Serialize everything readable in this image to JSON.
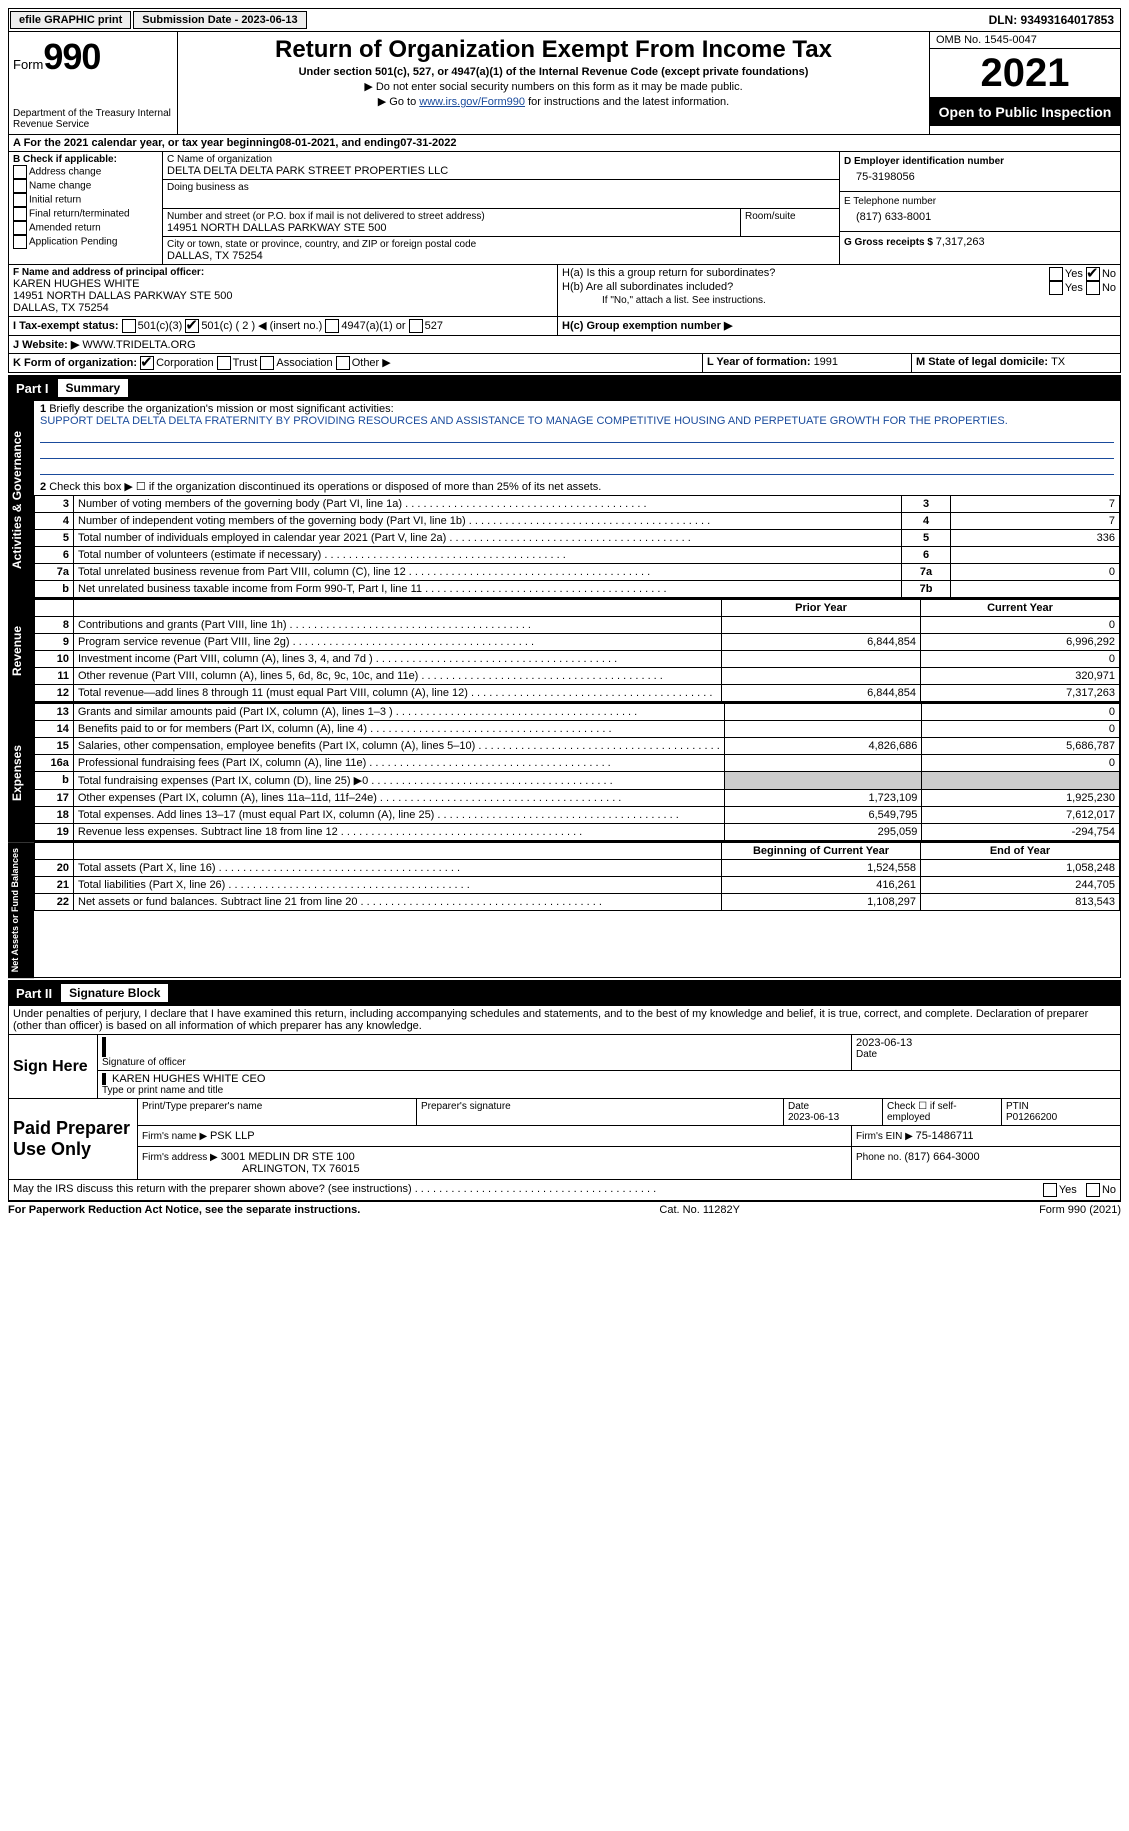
{
  "topbar": {
    "efile_btn": "efile GRAPHIC print",
    "sub_lbl": "Submission Date - 2023-06-13",
    "dln_lbl": "DLN: 93493164017853"
  },
  "header": {
    "form_label": "Form",
    "form_num": "990",
    "dept": "Department of the Treasury\nInternal Revenue Service",
    "title": "Return of Organization Exempt From Income Tax",
    "sub": "Under section 501(c), 527, or 4947(a)(1) of the Internal Revenue Code (except private foundations)",
    "note1": "▶ Do not enter social security numbers on this form as it may be made public.",
    "note2_a": "▶ Go to ",
    "note2_link": "www.irs.gov/Form990",
    "note2_b": " for instructions and the latest information.",
    "omb": "OMB No. 1545-0047",
    "year": "2021",
    "open": "Open to Public Inspection"
  },
  "periodA": {
    "a": "A For the 2021 calendar year, or tax year beginning ",
    "begin": "08-01-2021",
    "mid": " , and ending ",
    "end": "07-31-2022"
  },
  "boxB": {
    "title": "B Check if applicable:",
    "items": [
      "Address change",
      "Name change",
      "Initial return",
      "Final return/terminated",
      "Amended return",
      "Application Pending"
    ]
  },
  "boxC": {
    "name_lbl": "C Name of organization",
    "name": "DELTA DELTA DELTA PARK STREET PROPERTIES LLC",
    "dba_lbl": "Doing business as",
    "addr_lbl": "Number and street (or P.O. box if mail is not delivered to street address)",
    "addr": "14951 NORTH DALLAS PARKWAY STE 500",
    "room_lbl": "Room/suite",
    "city_lbl": "City or town, state or province, country, and ZIP or foreign postal code",
    "city": "DALLAS, TX  75254"
  },
  "boxD": {
    "lbl": "D Employer identification number",
    "val": "75-3198056"
  },
  "boxE": {
    "lbl": "E Telephone number",
    "val": "(817) 633-8001"
  },
  "boxG": {
    "lbl": "G Gross receipts $ ",
    "val": "7,317,263"
  },
  "boxF": {
    "lbl": "F  Name and address of principal officer:",
    "name": "KAREN HUGHES WHITE",
    "addr1": "14951 NORTH DALLAS PARKWAY STE 500",
    "addr2": "DALLAS, TX  75254"
  },
  "boxH": {
    "a": "H(a)  Is this a group return for subordinates?",
    "b": "H(b)  Are all subordinates included?",
    "bnote": "If \"No,\" attach a list. See instructions.",
    "c": "H(c)  Group exemption number ▶",
    "yes": "Yes",
    "no": "No"
  },
  "boxI": {
    "lbl": "I   Tax-exempt status:",
    "o1": "501(c)(3)",
    "o2": "501(c) ( 2 ) ◀ (insert no.)",
    "o3": "4947(a)(1) or",
    "o4": "527"
  },
  "boxJ": {
    "lbl": "J   Website: ▶ ",
    "val": "WWW.TRIDELTA.ORG"
  },
  "boxK": {
    "lbl": "K Form of organization:",
    "o1": "Corporation",
    "o2": "Trust",
    "o3": "Association",
    "o4": "Other ▶"
  },
  "boxL": {
    "lbl": "L Year of formation: ",
    "val": "1991"
  },
  "boxM": {
    "lbl": "M State of legal domicile: ",
    "val": "TX"
  },
  "part1": {
    "title": "Part I",
    "sub": "Summary",
    "tab_act": "Activities & Governance",
    "tab_rev": "Revenue",
    "tab_exp": "Expenses",
    "tab_net": "Net Assets or Fund Balances",
    "line1_lbl": "Briefly describe the organization's mission or most significant activities:",
    "line1_val": "SUPPORT DELTA DELTA DELTA FRATERNITY BY PROVIDING RESOURCES AND ASSISTANCE TO MANAGE COMPETITIVE HOUSING AND PERPETUATE GROWTH FOR THE PROPERTIES.",
    "line2": "Check this box ▶ ☐ if the organization discontinued its operations or disposed of more than 25% of its net assets.",
    "rows_act": [
      {
        "n": "3",
        "t": "Number of voting members of the governing body (Part VI, line 1a)",
        "b": "3",
        "v": "7"
      },
      {
        "n": "4",
        "t": "Number of independent voting members of the governing body (Part VI, line 1b)",
        "b": "4",
        "v": "7"
      },
      {
        "n": "5",
        "t": "Total number of individuals employed in calendar year 2021 (Part V, line 2a)",
        "b": "5",
        "v": "336"
      },
      {
        "n": "6",
        "t": "Total number of volunteers (estimate if necessary)",
        "b": "6",
        "v": ""
      },
      {
        "n": "7a",
        "t": "Total unrelated business revenue from Part VIII, column (C), line 12",
        "b": "7a",
        "v": "0"
      },
      {
        "n": "b",
        "t": "Net unrelated business taxable income from Form 990-T, Part I, line 11",
        "b": "7b",
        "v": ""
      }
    ],
    "col_py": "Prior Year",
    "col_cy": "Current Year",
    "rows_rev": [
      {
        "n": "8",
        "t": "Contributions and grants (Part VIII, line 1h)",
        "py": "",
        "cy": "0"
      },
      {
        "n": "9",
        "t": "Program service revenue (Part VIII, line 2g)",
        "py": "6,844,854",
        "cy": "6,996,292"
      },
      {
        "n": "10",
        "t": "Investment income (Part VIII, column (A), lines 3, 4, and 7d )",
        "py": "",
        "cy": "0"
      },
      {
        "n": "11",
        "t": "Other revenue (Part VIII, column (A), lines 5, 6d, 8c, 9c, 10c, and 11e)",
        "py": "",
        "cy": "320,971"
      },
      {
        "n": "12",
        "t": "Total revenue—add lines 8 through 11 (must equal Part VIII, column (A), line 12)",
        "py": "6,844,854",
        "cy": "7,317,263"
      }
    ],
    "rows_exp": [
      {
        "n": "13",
        "t": "Grants and similar amounts paid (Part IX, column (A), lines 1–3 )",
        "py": "",
        "cy": "0"
      },
      {
        "n": "14",
        "t": "Benefits paid to or for members (Part IX, column (A), line 4)",
        "py": "",
        "cy": "0"
      },
      {
        "n": "15",
        "t": "Salaries, other compensation, employee benefits (Part IX, column (A), lines 5–10)",
        "py": "4,826,686",
        "cy": "5,686,787"
      },
      {
        "n": "16a",
        "t": "Professional fundraising fees (Part IX, column (A), line 11e)",
        "py": "",
        "cy": "0"
      },
      {
        "n": "b",
        "t": "Total fundraising expenses (Part IX, column (D), line 25) ▶0",
        "py": "__shade__",
        "cy": "__shade__"
      },
      {
        "n": "17",
        "t": "Other expenses (Part IX, column (A), lines 11a–11d, 11f–24e)",
        "py": "1,723,109",
        "cy": "1,925,230"
      },
      {
        "n": "18",
        "t": "Total expenses. Add lines 13–17 (must equal Part IX, column (A), line 25)",
        "py": "6,549,795",
        "cy": "7,612,017"
      },
      {
        "n": "19",
        "t": "Revenue less expenses. Subtract line 18 from line 12",
        "py": "295,059",
        "cy": "-294,754"
      }
    ],
    "col_bcy": "Beginning of Current Year",
    "col_ey": "End of Year",
    "rows_net": [
      {
        "n": "20",
        "t": "Total assets (Part X, line 16)",
        "py": "1,524,558",
        "cy": "1,058,248"
      },
      {
        "n": "21",
        "t": "Total liabilities (Part X, line 26)",
        "py": "416,261",
        "cy": "244,705"
      },
      {
        "n": "22",
        "t": "Net assets or fund balances. Subtract line 21 from line 20",
        "py": "1,108,297",
        "cy": "813,543"
      }
    ]
  },
  "part2": {
    "title": "Part II",
    "sub": "Signature Block",
    "decl": "Under penalties of perjury, I declare that I have examined this return, including accompanying schedules and statements, and to the best of my knowledge and belief, it is true, correct, and complete. Declaration of preparer (other than officer) is based on all information of which preparer has any knowledge.",
    "sign_here": "Sign Here",
    "sig_off": "Signature of officer",
    "sig_date": "2023-06-13",
    "date_lbl": "Date",
    "sig_name": "KAREN HUGHES WHITE  CEO",
    "sig_name_lbl": "Type or print name and title",
    "paid": "Paid Preparer Use Only",
    "p_name_lbl": "Print/Type preparer's name",
    "p_sig_lbl": "Preparer's signature",
    "p_date_lbl": "Date",
    "p_date": "2023-06-13",
    "p_self": "Check ☐ if self-employed",
    "ptin_lbl": "PTIN",
    "ptin": "P01266200",
    "firm_lbl": "Firm's name    ▶ ",
    "firm": "PSK LLP",
    "firm_ein_lbl": "Firm's EIN ▶ ",
    "firm_ein": "75-1486711",
    "firm_addr_lbl": "Firm's address ▶",
    "firm_addr1": "3001 MEDLIN DR STE 100",
    "firm_addr2": "ARLINGTON, TX  76015",
    "phone_lbl": "Phone no. ",
    "phone": "(817) 664-3000",
    "discuss": "May the IRS discuss this return with the preparer shown above? (see instructions)",
    "yes": "Yes",
    "no": "No"
  },
  "footer": {
    "left": "For Paperwork Reduction Act Notice, see the separate instructions.",
    "mid": "Cat. No. 11282Y",
    "right": "Form 990 (2021)"
  }
}
